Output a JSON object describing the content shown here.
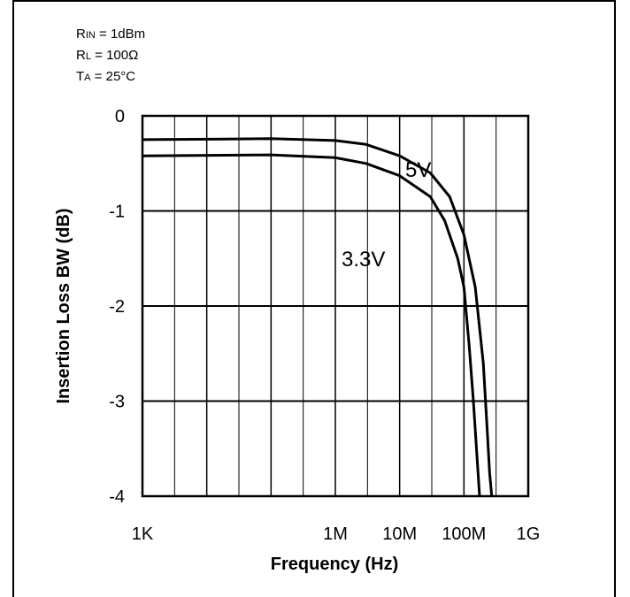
{
  "conditions": [
    {
      "main": "R",
      "sub": "IN",
      "rest": " = 1dBm"
    },
    {
      "main": "R",
      "sub": "L",
      "rest": " = 100Ω"
    },
    {
      "main": "T",
      "sub": "A",
      "rest": " = 25°C"
    }
  ],
  "chart_data": {
    "type": "line",
    "title": "",
    "xlabel": "Frequency (Hz)",
    "ylabel": "Insertion Loss BW (dB)",
    "x_scale": "log",
    "xlim": [
      1000,
      1000000000
    ],
    "ylim": [
      -4,
      0
    ],
    "x_ticks": [
      1000,
      1000000,
      10000000,
      100000000,
      1000000000
    ],
    "x_tick_labels": [
      "1K",
      "1M",
      "10M",
      "100M",
      "1G"
    ],
    "y_ticks": [
      0,
      -1,
      -2,
      -3,
      -4
    ],
    "y_tick_labels": [
      "0",
      "-1",
      "-2",
      "-3",
      "-4"
    ],
    "grid": true,
    "series": [
      {
        "name": "5V",
        "x": [
          1000,
          100000,
          1000000,
          3000000,
          10000000,
          30000000,
          60000000,
          100000000,
          150000000,
          200000000,
          230000000,
          250000000,
          270000000
        ],
        "y": [
          -0.25,
          -0.24,
          -0.26,
          -0.3,
          -0.42,
          -0.6,
          -0.85,
          -1.25,
          -1.8,
          -2.6,
          -3.3,
          -3.75,
          -4.0
        ]
      },
      {
        "name": "3.3V",
        "x": [
          1000,
          100000,
          1000000,
          3000000,
          10000000,
          30000000,
          50000000,
          80000000,
          100000000,
          120000000,
          140000000,
          160000000,
          175000000
        ],
        "y": [
          -0.42,
          -0.41,
          -0.44,
          -0.5,
          -0.63,
          -0.85,
          -1.1,
          -1.5,
          -1.8,
          -2.4,
          -3.0,
          -3.6,
          -4.0
        ]
      }
    ]
  }
}
